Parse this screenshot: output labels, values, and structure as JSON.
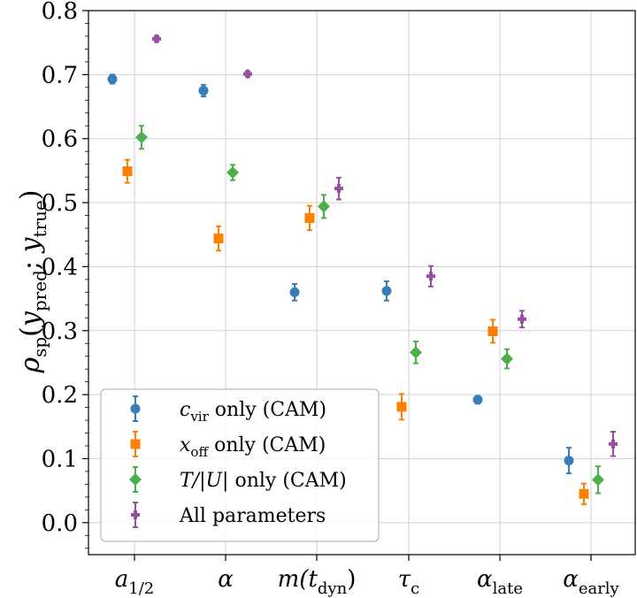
{
  "chart_data": {
    "type": "scatter",
    "ylabel": "ρ_sp(y_pred, y_true)",
    "ylabel_parts": {
      "rho": "ρ",
      "sp": "sp",
      "ypred_y": "y",
      "pred": "pred",
      "ytrue_y": "y",
      "true": "true"
    },
    "ylim": [
      -0.05,
      0.8
    ],
    "yticks": [
      "0.0",
      "0.1",
      "0.2",
      "0.3",
      "0.4",
      "0.5",
      "0.6",
      "0.7",
      "0.8"
    ],
    "ytick_values": [
      0.0,
      0.1,
      0.2,
      0.3,
      0.4,
      0.5,
      0.6,
      0.7,
      0.8
    ],
    "grid": true,
    "legend_position": "lower-left",
    "categories": [
      {
        "main": "a",
        "sub": "1/2"
      },
      {
        "main": "α",
        "sub": ""
      },
      {
        "main": "m(t",
        "sub": "dyn",
        "suffix": ")"
      },
      {
        "main": "τ",
        "sub": "c"
      },
      {
        "main": "α",
        "sub": "late"
      },
      {
        "main": "α",
        "sub": "early"
      }
    ],
    "series": [
      {
        "name": "c_vir only (CAM)",
        "legend": {
          "sym": "c",
          "sub": "vir",
          "rest": " only (CAM)"
        },
        "color": "#377eb8",
        "marker": "circle",
        "values": [
          0.693,
          0.675,
          0.36,
          0.362,
          0.192,
          0.097
        ],
        "errors": [
          0.007,
          0.009,
          0.013,
          0.015,
          0.006,
          0.02
        ]
      },
      {
        "name": "x_off only (CAM)",
        "legend": {
          "sym": "x",
          "sub": "off",
          "rest": " only (CAM)"
        },
        "color": "#ff7f00",
        "marker": "square",
        "values": [
          0.549,
          0.444,
          0.476,
          0.181,
          0.299,
          0.045
        ],
        "errors": [
          0.018,
          0.019,
          0.019,
          0.02,
          0.018,
          0.016
        ]
      },
      {
        "name": "T/|U| only (CAM)",
        "legend": {
          "sym": "T/|U|",
          "sub": "",
          "rest": " only (CAM)"
        },
        "color": "#4daf4a",
        "marker": "diamond",
        "values": [
          0.602,
          0.547,
          0.494,
          0.266,
          0.256,
          0.067
        ],
        "errors": [
          0.018,
          0.012,
          0.018,
          0.017,
          0.015,
          0.021
        ]
      },
      {
        "name": "All parameters",
        "legend": {
          "sym": "",
          "sub": "",
          "rest": "All parameters"
        },
        "color": "#984ea3",
        "marker": "plus",
        "values": [
          0.756,
          0.701,
          0.522,
          0.385,
          0.318,
          0.123
        ],
        "errors": [
          0.004,
          0.004,
          0.017,
          0.016,
          0.013,
          0.019
        ]
      }
    ]
  }
}
